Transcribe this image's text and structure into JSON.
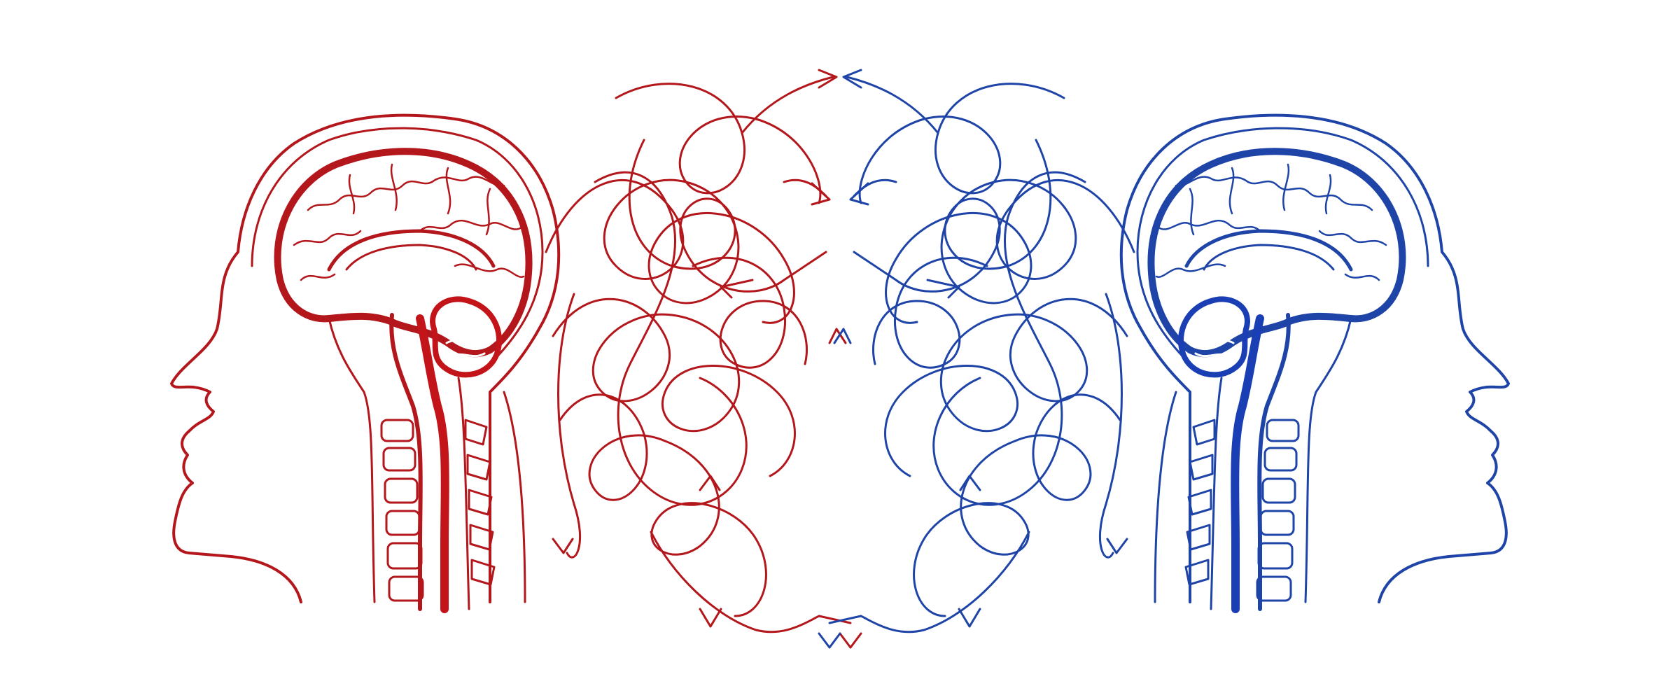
{
  "scene": {
    "kind": "illustration",
    "colors": {
      "background": "#ffffff",
      "left_head": "#b3161b",
      "left_head_fill": "#c3141a",
      "right_head": "#1f44a8",
      "right_head_fill": "#1a3fb5"
    },
    "left_head": {
      "facing": "left",
      "tangled_lines": 9,
      "arrows": 6
    },
    "right_head": {
      "facing": "right",
      "tangled_lines": 9,
      "arrows": 6
    }
  }
}
